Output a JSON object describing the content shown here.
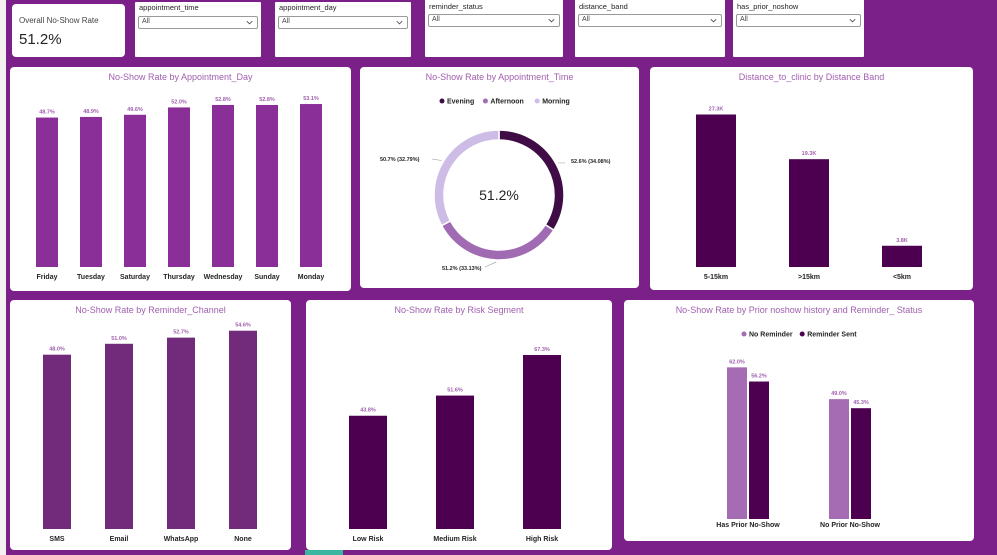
{
  "kpi": {
    "label": "Overall No-Show Rate",
    "value": "51.2%"
  },
  "slicers": [
    {
      "title": "appointment_time",
      "value": "All"
    },
    {
      "title": "appointment_day",
      "value": "All"
    },
    {
      "title": "reminder_status",
      "value": "All"
    },
    {
      "title": "distance_band",
      "value": "All"
    },
    {
      "title": "has_prior_noshow",
      "value": "All"
    }
  ],
  "icons": {
    "dropdown": "chevron-down-icon",
    "legend_marker": "legend-dot-icon"
  },
  "colors": {
    "background": "#7b2089",
    "bar_day": "#8b2f98",
    "bar_distance": "#4d0050",
    "bar_channel": "#722a7a",
    "bar_risk": "#4d0050",
    "evening": "#3f0c45",
    "afternoon": "#a06bb3",
    "morning": "#cdbde6",
    "no_reminder": "#a56bb3",
    "reminder_sent": "#4d0050"
  },
  "chart_data": [
    {
      "type": "bar",
      "title": "No-Show Rate by Appointment_Day",
      "categories": [
        "Friday",
        "Tuesday",
        "Saturday",
        "Thursday",
        "Wednesday",
        "Sunday",
        "Monday"
      ],
      "values": [
        48.7,
        48.9,
        49.6,
        52.0,
        52.8,
        52.8,
        53.1
      ],
      "labels": [
        "48.7%",
        "48.9%",
        "49.6%",
        "52.0%",
        "52.8%",
        "52.8%",
        "53.1%"
      ],
      "ylim": [
        0,
        58
      ]
    },
    {
      "type": "pie",
      "donut": true,
      "title": "No-Show Rate by Appointment_Time",
      "center_label": "51.2%",
      "legend": [
        "Evening",
        "Afternoon",
        "Morning"
      ],
      "slices": [
        {
          "name": "Evening",
          "value": 34.08,
          "label": "52.6% (34.08%)"
        },
        {
          "name": "Afternoon",
          "value": 33.13,
          "label": "51.2% (33.13%)"
        },
        {
          "name": "Morning",
          "value": 32.79,
          "label": "50.7% (32.79%)"
        }
      ]
    },
    {
      "type": "bar",
      "title": "Distance_to_clinic by Distance Band",
      "categories": [
        "5-15km",
        ">15km",
        "<5km"
      ],
      "values": [
        27300,
        19300,
        3800
      ],
      "labels": [
        "27.3K",
        "19.3K",
        "3.8K"
      ],
      "ylim": [
        0,
        29000
      ]
    },
    {
      "type": "bar",
      "title": "No-Show Rate by Reminder_Channel",
      "categories": [
        "SMS",
        "Email",
        "WhatsApp",
        "None"
      ],
      "values": [
        48.0,
        51.0,
        52.7,
        54.6
      ],
      "labels": [
        "48.0%",
        "51.0%",
        "52.7%",
        "54.6%"
      ],
      "ylim": [
        0,
        57
      ]
    },
    {
      "type": "bar",
      "title": "No-Show Rate by Risk Segment",
      "categories": [
        "Low Risk",
        "Medium Risk",
        "High Risk"
      ],
      "values": [
        43.8,
        51.6,
        67.3
      ],
      "labels": [
        "43.8%",
        "51.6%",
        "67.3%"
      ],
      "ylim": [
        0,
        70
      ]
    },
    {
      "type": "bar",
      "title": "No-Show Rate by Prior noshow history and Reminder_ Status",
      "categories": [
        "Has Prior No-Show",
        "No Prior No-Show"
      ],
      "legend": [
        "No Reminder",
        "Reminder Sent"
      ],
      "series": [
        {
          "name": "No Reminder",
          "values": [
            62.0,
            49.0
          ],
          "labels": [
            "62.0%",
            "49.0%"
          ]
        },
        {
          "name": "Reminder Sent",
          "values": [
            56.2,
            45.3
          ],
          "labels": [
            "56.2%",
            "45.3%"
          ]
        }
      ],
      "ylim": [
        0,
        65
      ]
    }
  ]
}
